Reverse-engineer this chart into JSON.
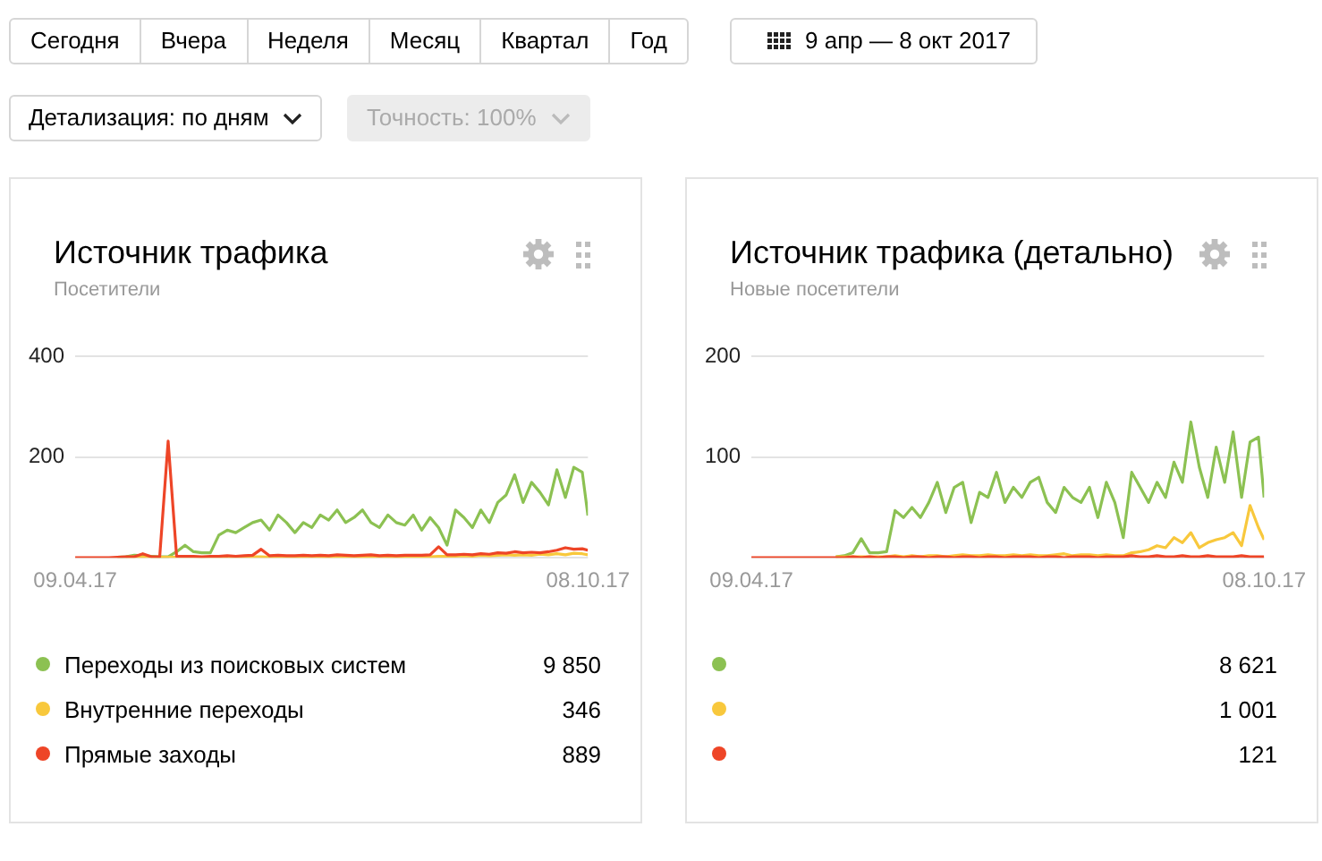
{
  "chart_data": [
    {
      "type": "other",
      "annotations": [
        "Сегодня",
        "Вчера",
        "Неделя",
        "Месяц",
        "Квартал",
        "Год",
        "9 апр — 8 окт 2017",
        "Детализация: по дням",
        "Точность: 100%"
      ]
    },
    {
      "type": "line",
      "title": "Источник трафика",
      "subtitle": "Посетители",
      "marker": "none",
      "line_style": "solid",
      "grid": "y",
      "legend": "bottom",
      "tick_labels": "xy",
      "x": [
        "2017-04-09",
        "2017-04-12",
        "2017-04-15",
        "2017-04-18",
        "2017-04-21",
        "2017-04-24",
        "2017-04-27",
        "2017-04-30",
        "2017-05-03",
        "2017-05-06",
        "2017-05-09",
        "2017-05-12",
        "2017-05-15",
        "2017-05-18",
        "2017-05-21",
        "2017-05-24",
        "2017-05-27",
        "2017-05-30",
        "2017-06-02",
        "2017-06-05",
        "2017-06-08",
        "2017-06-11",
        "2017-06-14",
        "2017-06-17",
        "2017-06-20",
        "2017-06-23",
        "2017-06-26",
        "2017-06-29",
        "2017-07-02",
        "2017-07-05",
        "2017-07-08",
        "2017-07-11",
        "2017-07-14",
        "2017-07-17",
        "2017-07-20",
        "2017-07-23",
        "2017-07-26",
        "2017-07-29",
        "2017-08-01",
        "2017-08-04",
        "2017-08-07",
        "2017-08-10",
        "2017-08-13",
        "2017-08-16",
        "2017-08-19",
        "2017-08-22",
        "2017-08-25",
        "2017-08-28",
        "2017-08-31",
        "2017-09-03",
        "2017-09-06",
        "2017-09-09",
        "2017-09-12",
        "2017-09-15",
        "2017-09-18",
        "2017-09-21",
        "2017-09-24",
        "2017-09-27",
        "2017-09-30",
        "2017-10-03",
        "2017-10-06",
        "2017-10-08"
      ],
      "xlim": [
        "2017-04-09",
        "2017-10-08"
      ],
      "xticks": [
        {
          "value": "2017-04-09",
          "label": "09.04.17"
        },
        {
          "value": "2017-10-08",
          "label": "08.10.17"
        }
      ],
      "ylim": [
        0,
        400
      ],
      "yticks": [
        {
          "value": 0,
          "label": null
        },
        200,
        400
      ],
      "series": [
        {
          "name": "Переходы из поисковых систем",
          "color": "#8cc152",
          "values": [
            null,
            null,
            null,
            null,
            null,
            1,
            2,
            5,
            4,
            3,
            2,
            2,
            12,
            25,
            12,
            10,
            10,
            45,
            55,
            50,
            60,
            70,
            75,
            55,
            85,
            70,
            50,
            70,
            60,
            85,
            75,
            95,
            70,
            80,
            95,
            70,
            60,
            85,
            70,
            65,
            85,
            55,
            80,
            60,
            25,
            95,
            80,
            60,
            95,
            70,
            110,
            125,
            165,
            110,
            150,
            130,
            105,
            175,
            120,
            180,
            170,
            84
          ]
        },
        {
          "name": "Внутренние переходы",
          "color": "#f8c83c",
          "values": [
            null,
            null,
            null,
            null,
            null,
            null,
            1,
            2,
            1,
            1,
            1,
            1,
            1,
            1,
            1,
            1,
            1,
            1,
            2,
            1,
            2,
            2,
            2,
            1,
            2,
            2,
            1,
            2,
            2,
            2,
            1,
            2,
            2,
            2,
            1,
            2,
            2,
            2,
            1,
            2,
            2,
            2,
            2,
            3,
            3,
            3,
            4,
            3,
            5,
            4,
            5,
            6,
            5,
            6,
            5,
            7,
            6,
            8,
            6,
            9,
            8,
            6
          ]
        },
        {
          "name": "Прямые заходы",
          "color": "#ee4527",
          "values": [
            0,
            0,
            0,
            0,
            0,
            1,
            2,
            2,
            8,
            2,
            2,
            232,
            3,
            3,
            3,
            2,
            3,
            3,
            4,
            3,
            4,
            5,
            17,
            4,
            5,
            4,
            4,
            5,
            4,
            5,
            4,
            6,
            5,
            4,
            5,
            6,
            4,
            5,
            4,
            5,
            5,
            5,
            6,
            22,
            6,
            6,
            7,
            6,
            8,
            7,
            10,
            9,
            12,
            10,
            11,
            10,
            12,
            15,
            20,
            17,
            18,
            15
          ]
        }
      ],
      "annotations": [
        "9 850",
        "346",
        "889"
      ]
    },
    {
      "type": "line",
      "title": "Источник трафика (детально)",
      "subtitle": "Новые посетители",
      "marker": "none",
      "line_style": "solid",
      "grid": "y",
      "legend": "bottom",
      "tick_labels": "xy",
      "x": [
        "2017-04-09",
        "2017-04-12",
        "2017-04-15",
        "2017-04-18",
        "2017-04-21",
        "2017-04-24",
        "2017-04-27",
        "2017-04-30",
        "2017-05-03",
        "2017-05-06",
        "2017-05-09",
        "2017-05-12",
        "2017-05-15",
        "2017-05-18",
        "2017-05-21",
        "2017-05-24",
        "2017-05-27",
        "2017-05-30",
        "2017-06-02",
        "2017-06-05",
        "2017-06-08",
        "2017-06-11",
        "2017-06-14",
        "2017-06-17",
        "2017-06-20",
        "2017-06-23",
        "2017-06-26",
        "2017-06-29",
        "2017-07-02",
        "2017-07-05",
        "2017-07-08",
        "2017-07-11",
        "2017-07-14",
        "2017-07-17",
        "2017-07-20",
        "2017-07-23",
        "2017-07-26",
        "2017-07-29",
        "2017-08-01",
        "2017-08-04",
        "2017-08-07",
        "2017-08-10",
        "2017-08-13",
        "2017-08-16",
        "2017-08-19",
        "2017-08-22",
        "2017-08-25",
        "2017-08-28",
        "2017-08-31",
        "2017-09-03",
        "2017-09-06",
        "2017-09-09",
        "2017-09-12",
        "2017-09-15",
        "2017-09-18",
        "2017-09-21",
        "2017-09-24",
        "2017-09-27",
        "2017-09-30",
        "2017-10-03",
        "2017-10-06",
        "2017-10-08"
      ],
      "xlim": [
        "2017-04-09",
        "2017-10-08"
      ],
      "xticks": [
        {
          "value": "2017-04-09",
          "label": "09.04.17"
        },
        {
          "value": "2017-10-08",
          "label": "08.10.17"
        }
      ],
      "ylim": [
        0,
        200
      ],
      "yticks": [
        {
          "value": 0,
          "label": null
        },
        100,
        200
      ],
      "series": [
        {
          "color": "#8cc152",
          "values": [
            null,
            null,
            null,
            null,
            null,
            null,
            null,
            null,
            null,
            null,
            1,
            2,
            5,
            19,
            5,
            5,
            6,
            47,
            40,
            50,
            40,
            55,
            75,
            45,
            70,
            75,
            35,
            65,
            60,
            85,
            55,
            70,
            60,
            75,
            80,
            55,
            45,
            70,
            60,
            55,
            70,
            40,
            75,
            55,
            20,
            85,
            70,
            55,
            75,
            60,
            95,
            75,
            135,
            90,
            60,
            110,
            75,
            125,
            60,
            115,
            120,
            60
          ]
        },
        {
          "color": "#f8c83c",
          "values": [
            null,
            null,
            null,
            null,
            null,
            null,
            null,
            null,
            null,
            null,
            1,
            1,
            1,
            1,
            1,
            1,
            1,
            2,
            1,
            2,
            1,
            2,
            2,
            1,
            2,
            3,
            2,
            2,
            3,
            2,
            2,
            3,
            2,
            3,
            2,
            2,
            3,
            4,
            2,
            3,
            3,
            2,
            3,
            2,
            2,
            5,
            6,
            8,
            12,
            10,
            20,
            15,
            25,
            10,
            15,
            18,
            20,
            25,
            12,
            52,
            30,
            18
          ]
        },
        {
          "color": "#ee4527",
          "values": [
            0,
            0,
            0,
            0,
            0,
            0,
            0,
            0,
            0,
            0,
            0,
            0,
            1,
            0,
            1,
            0,
            1,
            1,
            0,
            1,
            1,
            0,
            1,
            1,
            0,
            1,
            1,
            0,
            1,
            1,
            0,
            1,
            1,
            1,
            0,
            1,
            1,
            0,
            1,
            1,
            1,
            0,
            1,
            1,
            1,
            2,
            1,
            1,
            2,
            1,
            1,
            2,
            1,
            1,
            2,
            1,
            1,
            1,
            2,
            1,
            1,
            1
          ]
        }
      ],
      "annotations": [
        "8 621",
        "1 001",
        "121"
      ]
    }
  ]
}
